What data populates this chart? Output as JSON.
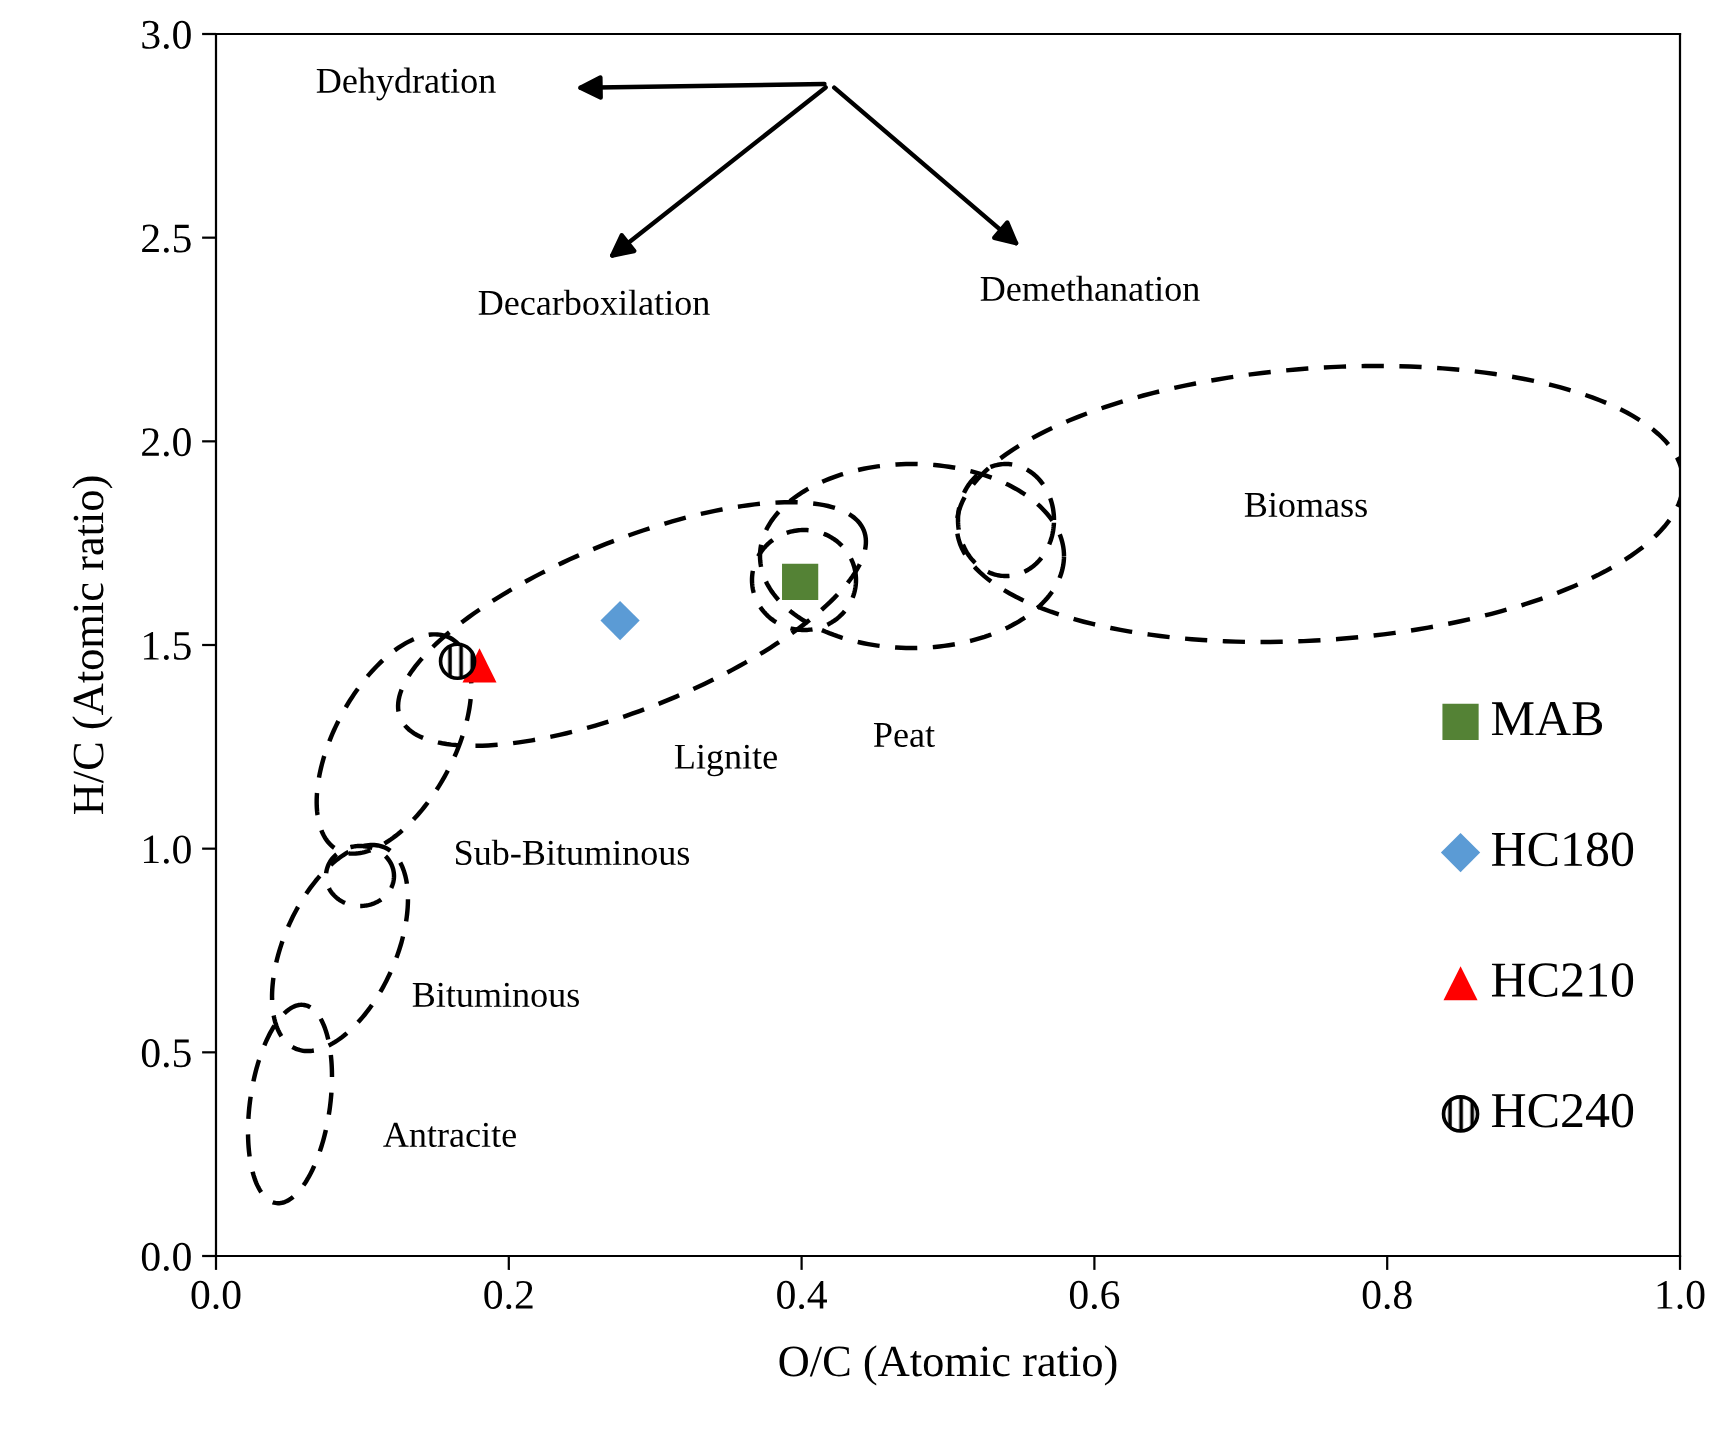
{
  "chart_data": {
    "type": "scatter",
    "xlabel": "O/C (Atomic ratio)",
    "ylabel": "H/C (Atomic ratio)",
    "xlim": [
      0,
      1
    ],
    "xticks": [
      {
        "value": 0,
        "label": "0.0"
      },
      0.2,
      0.4,
      0.6,
      0.8,
      {
        "value": 1,
        "label": "1.0"
      }
    ],
    "ylim": [
      0,
      3
    ],
    "yticks": [
      {
        "value": 0,
        "label": "0.0"
      },
      0.5,
      {
        "value": 1,
        "label": "1.0"
      },
      1.5,
      {
        "value": 2,
        "label": "2.0"
      },
      2.5,
      {
        "value": 3,
        "label": "3.0"
      }
    ],
    "grid": false,
    "legend": "bottom right",
    "series": [
      {
        "name": "MAB",
        "color": "#548235",
        "marker": "square",
        "x": [
          0.399
        ],
        "values": [
          1.655
        ]
      },
      {
        "name": "HC180",
        "color": "#5b9bd5",
        "marker": "diamond",
        "x": [
          0.276
        ],
        "values": [
          1.56
        ]
      },
      {
        "name": "HC210",
        "color": "#ff0000",
        "marker": "triangle",
        "x": [
          0.18
        ],
        "values": [
          1.45
        ]
      },
      {
        "name": "HC240",
        "color": "#000000",
        "marker": "circle",
        "x": [
          0.165
        ],
        "values": [
          1.46
        ]
      }
    ],
    "annotations": [
      "Dehydration",
      "Decarboxilation",
      "Demethanation",
      "Biomass",
      "Peat",
      "Lignite",
      "Sub-Bituminous",
      "Bituminous",
      "Antracite"
    ]
  }
}
